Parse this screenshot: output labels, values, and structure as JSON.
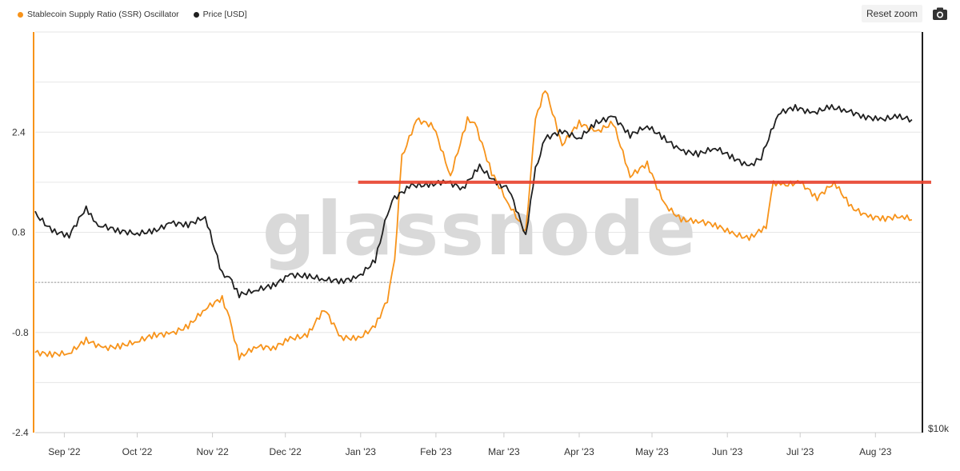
{
  "legend": {
    "ssr_label": "Stablecoin Supply Ratio (SSR) Oscillator",
    "price_label": "Price [USD]"
  },
  "toolbar": {
    "reset_zoom": "Reset zoom",
    "camera_icon": "camera-icon"
  },
  "colors": {
    "ssr": "#f7931a",
    "price": "#1f1f1f",
    "threshold": "#e8412c",
    "grid": "#e6e6e6"
  },
  "watermark": "glassnode",
  "chart_data": {
    "type": "line",
    "x_ticks": [
      "Sep '22",
      "Oct '22",
      "Nov '22",
      "Dec '22",
      "Jan '23",
      "Feb '23",
      "Mar '23",
      "Apr '23",
      "May '23",
      "Jun '23",
      "Jul '23",
      "Aug '23"
    ],
    "y_ticks": [
      "2.4",
      "0.8",
      "-0.8",
      "-2.4"
    ],
    "y_right_ticks": [
      "$10k"
    ],
    "xlim": [
      "2022-08-20",
      "2023-08-20"
    ],
    "ylim": [
      -2.4,
      4.0
    ],
    "threshold_line": {
      "y": 1.6,
      "x_start": "2022-12-31"
    },
    "zero_line": 0.0,
    "grid": true,
    "legend_position": "top-left",
    "series": [
      {
        "name": "Stablecoin Supply Ratio (SSR) Oscillator",
        "axis": "left",
        "x": [
          "2022-08-20",
          "2022-08-27",
          "2022-09-03",
          "2022-09-10",
          "2022-09-17",
          "2022-09-24",
          "2022-10-01",
          "2022-10-08",
          "2022-10-15",
          "2022-10-22",
          "2022-10-29",
          "2022-11-05",
          "2022-11-08",
          "2022-11-12",
          "2022-11-19",
          "2022-11-26",
          "2022-12-03",
          "2022-12-10",
          "2022-12-17",
          "2022-12-24",
          "2022-12-31",
          "2023-01-07",
          "2023-01-12",
          "2023-01-15",
          "2023-01-18",
          "2023-01-24",
          "2023-01-31",
          "2023-02-07",
          "2023-02-14",
          "2023-02-17",
          "2023-02-24",
          "2023-03-03",
          "2023-03-10",
          "2023-03-14",
          "2023-03-18",
          "2023-03-25",
          "2023-04-01",
          "2023-04-08",
          "2023-04-15",
          "2023-04-22",
          "2023-04-29",
          "2023-05-06",
          "2023-05-13",
          "2023-05-20",
          "2023-05-27",
          "2023-06-03",
          "2023-06-10",
          "2023-06-17",
          "2023-06-20",
          "2023-06-24",
          "2023-07-01",
          "2023-07-08",
          "2023-07-15",
          "2023-07-22",
          "2023-07-29",
          "2023-08-05",
          "2023-08-12",
          "2023-08-16"
        ],
        "values": [
          -1.12,
          -1.15,
          -1.13,
          -0.92,
          -1.05,
          -1.02,
          -0.94,
          -0.84,
          -0.82,
          -0.7,
          -0.42,
          -0.25,
          -0.58,
          -1.2,
          -1.02,
          -1.05,
          -0.9,
          -0.85,
          -0.42,
          -0.88,
          -0.9,
          -0.7,
          -0.28,
          0.35,
          2.0,
          2.6,
          2.5,
          1.7,
          2.6,
          2.55,
          1.75,
          1.25,
          0.8,
          2.6,
          3.1,
          2.2,
          2.55,
          2.4,
          2.55,
          1.7,
          1.9,
          1.25,
          1.0,
          0.98,
          0.92,
          0.78,
          0.7,
          0.9,
          1.6,
          1.55,
          1.6,
          1.35,
          1.6,
          1.2,
          1.05,
          1.02,
          1.06,
          1.0
        ]
      },
      {
        "name": "Price [USD]",
        "axis": "right",
        "x": [
          "2022-08-20",
          "2022-08-27",
          "2022-09-03",
          "2022-09-10",
          "2022-09-14",
          "2022-09-17",
          "2022-09-24",
          "2022-10-01",
          "2022-10-08",
          "2022-10-15",
          "2022-10-22",
          "2022-10-29",
          "2022-11-05",
          "2022-11-08",
          "2022-11-12",
          "2022-11-19",
          "2022-11-26",
          "2022-12-03",
          "2022-12-10",
          "2022-12-17",
          "2022-12-24",
          "2022-12-31",
          "2023-01-07",
          "2023-01-12",
          "2023-01-15",
          "2023-01-22",
          "2023-01-29",
          "2023-02-05",
          "2023-02-12",
          "2023-02-19",
          "2023-02-26",
          "2023-03-03",
          "2023-03-10",
          "2023-03-14",
          "2023-03-18",
          "2023-03-25",
          "2023-04-01",
          "2023-04-08",
          "2023-04-15",
          "2023-04-22",
          "2023-04-29",
          "2023-05-06",
          "2023-05-13",
          "2023-05-20",
          "2023-05-27",
          "2023-06-03",
          "2023-06-10",
          "2023-06-15",
          "2023-06-22",
          "2023-06-29",
          "2023-07-06",
          "2023-07-13",
          "2023-07-20",
          "2023-07-27",
          "2023-08-03",
          "2023-08-10",
          "2023-08-16"
        ],
        "values": [
          1.1,
          0.82,
          0.75,
          1.2,
          0.92,
          0.9,
          0.82,
          0.78,
          0.82,
          0.95,
          0.92,
          1.05,
          0.13,
          0.08,
          -0.2,
          -0.12,
          -0.05,
          0.12,
          0.1,
          0.05,
          0.02,
          0.08,
          0.35,
          1.1,
          1.35,
          1.55,
          1.55,
          1.62,
          1.5,
          1.85,
          1.58,
          1.5,
          0.75,
          1.8,
          2.3,
          2.42,
          2.3,
          2.55,
          2.65,
          2.35,
          2.5,
          2.3,
          2.1,
          2.05,
          2.15,
          2.0,
          1.85,
          2.0,
          2.7,
          2.8,
          2.7,
          2.8,
          2.75,
          2.65,
          2.6,
          2.65,
          2.6
        ]
      }
    ]
  }
}
